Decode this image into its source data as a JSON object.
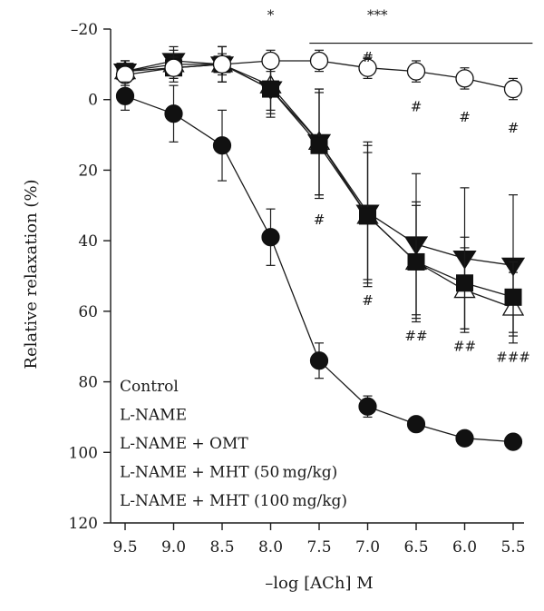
{
  "chart_data": {
    "type": "line",
    "xlabel": "–log [ACh] M",
    "ylabel": "Relative relaxation (%)",
    "x": [
      9.5,
      9.0,
      8.5,
      8.0,
      7.5,
      7.0,
      6.5,
      6.0,
      5.5
    ],
    "x_tick_labels": [
      "9.5",
      "9.0",
      "8.5",
      "8.0",
      "7.5",
      "7.0",
      "6.5",
      "6.0",
      "5.5"
    ],
    "xlim": [
      9.5,
      5.5
    ],
    "ylim": [
      -20,
      120
    ],
    "y_inverted": true,
    "y_ticks": [
      -20,
      0,
      20,
      40,
      60,
      80,
      100,
      120
    ],
    "y_tick_labels": [
      "–20",
      "0",
      "20",
      "40",
      "60",
      "80",
      "100",
      "120"
    ],
    "grid": false,
    "legend_position": "bottom-left",
    "legend_entries": [
      "Control",
      "L-NAME",
      "L-NAME + OMT",
      "L-NAME + MHT (50 mg/kg)",
      "L-NAME + MHT (100 mg/kg)"
    ],
    "series": [
      {
        "legend_index": 0,
        "marker": "filled-circle",
        "values": [
          -1,
          4,
          13,
          39,
          74,
          87,
          92,
          96,
          97
        ],
        "err": [
          4,
          8,
          10,
          8,
          5,
          3,
          2,
          2,
          2
        ]
      },
      {
        "legend_index": 1,
        "marker": "open-circle",
        "values": [
          -7,
          -9,
          -10,
          -11,
          -11,
          -9,
          -8,
          -6,
          -3
        ],
        "err": [
          3,
          3,
          3,
          3,
          3,
          3,
          3,
          3,
          3
        ]
      },
      {
        "legend_index": 2,
        "marker": "open-triangle-up",
        "values": [
          -8,
          -10,
          -10,
          -4,
          12,
          33,
          46,
          54,
          59
        ],
        "err": [
          3,
          4,
          5,
          7,
          15,
          18,
          16,
          12,
          10
        ]
      },
      {
        "legend_index": 3,
        "marker": "filled-square",
        "values": [
          -8,
          -9,
          -10,
          -3,
          13,
          33,
          46,
          52,
          56
        ],
        "err": [
          3,
          4,
          5,
          8,
          15,
          20,
          17,
          13,
          10
        ]
      },
      {
        "legend_index": 4,
        "marker": "filled-triangle-down",
        "values": [
          -8,
          -11,
          -10,
          -3,
          12,
          32,
          41,
          45,
          47
        ],
        "err": [
          3,
          4,
          5,
          7,
          15,
          20,
          20,
          20,
          20
        ]
      }
    ],
    "annotations": [
      {
        "text": "*",
        "x": 8.0,
        "y": -24
      },
      {
        "text": "***",
        "x": 6.9,
        "y": -24
      },
      {
        "text": "#",
        "x": 7.5,
        "y": 34
      },
      {
        "text": "#",
        "x": 7.0,
        "y": -12
      },
      {
        "text": "#",
        "x": 7.0,
        "y": 57
      },
      {
        "text": "#",
        "x": 6.5,
        "y": 2
      },
      {
        "text": "##",
        "x": 6.5,
        "y": 67
      },
      {
        "text": "#",
        "x": 6.0,
        "y": 5
      },
      {
        "text": "##",
        "x": 6.0,
        "y": 70
      },
      {
        "text": "#",
        "x": 5.5,
        "y": 8
      },
      {
        "text": "###",
        "x": 5.5,
        "y": 73
      }
    ],
    "significance_bracket": {
      "x_start": 7.6,
      "x_end": 5.3,
      "y": -16
    }
  }
}
